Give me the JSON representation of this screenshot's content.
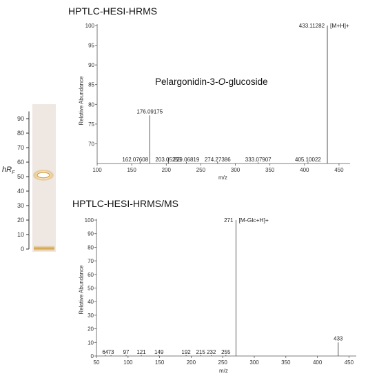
{
  "plate": {
    "axis_label_main": "hR",
    "axis_label_sub": "F",
    "ticks": [
      0,
      10,
      20,
      30,
      40,
      50,
      60,
      70,
      80,
      90
    ],
    "spot_hRF": 51,
    "colors": {
      "plate": "#efe7e2",
      "spot_ring": "#cf9a3a",
      "origin": "#d4a143"
    }
  },
  "compound_label": {
    "prefix": "Pelargonidin-3-",
    "italic": "O",
    "suffix": "-glucoside"
  },
  "chart_data": [
    {
      "type": "bar",
      "title": "HPTLC-HESI-HRMS",
      "xlabel": "m/z",
      "ylabel": "Relative Abundance",
      "xlim": [
        100,
        460
      ],
      "ylim": [
        65,
        100
      ],
      "xticks": [
        100,
        150,
        200,
        250,
        300,
        350,
        400,
        450
      ],
      "yticks": [
        70,
        75,
        80,
        85,
        90,
        95,
        100
      ],
      "peaks": [
        {
          "mz": 162.07608,
          "abundance": 65.5,
          "label": "162.07608"
        },
        {
          "mz": 176.09175,
          "abundance": 77.2,
          "label": "176.09175"
        },
        {
          "mz": 203.05255,
          "abundance": 66.5,
          "label": "203.05255"
        },
        {
          "mz": 229.06819,
          "abundance": 65.4,
          "label": "229.06819"
        },
        {
          "mz": 274.27386,
          "abundance": 65.4,
          "label": "274.27386"
        },
        {
          "mz": 333.07907,
          "abundance": 65.3,
          "label": "333.07907"
        },
        {
          "mz": 405.10022,
          "abundance": 65.3,
          "label": "405.10022"
        },
        {
          "mz": 433.11282,
          "abundance": 100,
          "label": "433.11282",
          "annotation": "[M+H]+"
        }
      ]
    },
    {
      "type": "bar",
      "title": "HPTLC-HESI-HRMS/MS",
      "xlabel": "m/z",
      "ylabel": "Relative Abundance",
      "xlim": [
        50,
        455
      ],
      "ylim": [
        0,
        100
      ],
      "xticks": [
        50,
        100,
        150,
        200,
        250,
        300,
        350,
        400,
        450
      ],
      "yticks": [
        0,
        10,
        20,
        30,
        40,
        50,
        60,
        70,
        80,
        90,
        100
      ],
      "peaks": [
        {
          "mz": 64,
          "abundance": 0.8,
          "label": "64"
        },
        {
          "mz": 73,
          "abundance": 0.6,
          "label": "73"
        },
        {
          "mz": 97,
          "abundance": 0.6,
          "label": "97"
        },
        {
          "mz": 121,
          "abundance": 0.7,
          "label": "121"
        },
        {
          "mz": 149,
          "abundance": 0.7,
          "label": "149"
        },
        {
          "mz": 192,
          "abundance": 0.6,
          "label": "192"
        },
        {
          "mz": 215,
          "abundance": 0.6,
          "label": "215"
        },
        {
          "mz": 232,
          "abundance": 0.6,
          "label": "232"
        },
        {
          "mz": 255,
          "abundance": 0.7,
          "label": "255"
        },
        {
          "mz": 271,
          "abundance": 100,
          "label": "271",
          "annotation": "[M-Glc+H]+"
        },
        {
          "mz": 433,
          "abundance": 10,
          "label": "433"
        }
      ]
    }
  ]
}
